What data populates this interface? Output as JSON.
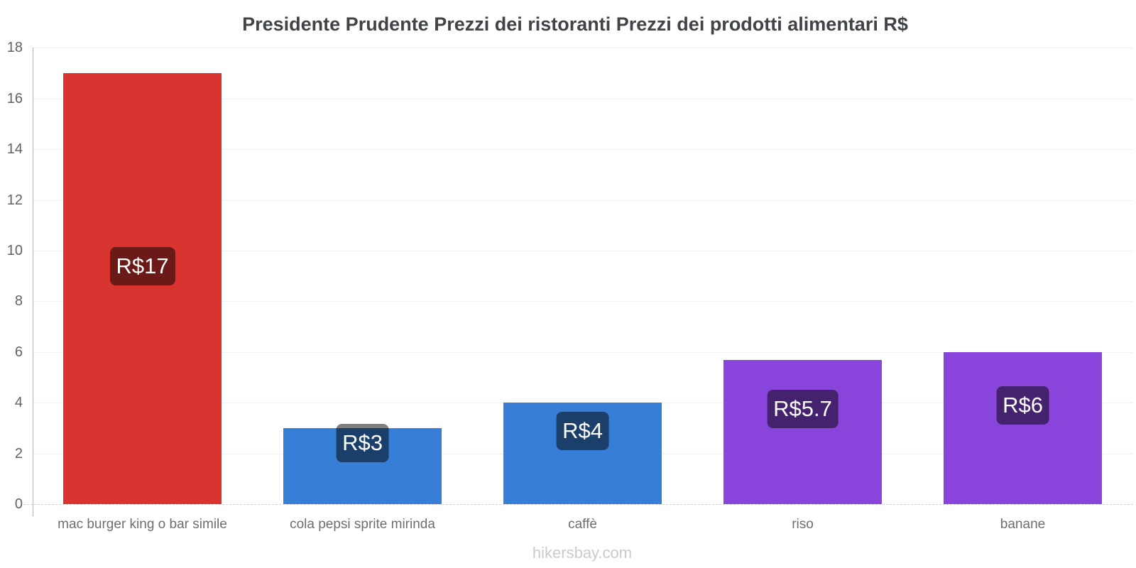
{
  "title": "Presidente Prudente Prezzi dei ristoranti Prezzi dei prodotti alimentari R$",
  "footer": "hikersbay.com",
  "chart_data": {
    "type": "bar",
    "title": "Presidente Prudente Prezzi dei ristoranti Prezzi dei prodotti alimentari R$",
    "categories": [
      "mac burger king o bar simile",
      "cola pepsi sprite mirinda",
      "caffè",
      "riso",
      "banane"
    ],
    "values": [
      17,
      3,
      4,
      5.7,
      6
    ],
    "value_labels": [
      "R$17",
      "R$3",
      "R$4",
      "R$5.7",
      "R$6"
    ],
    "bar_colors": [
      "#d9342f",
      "#377ed7",
      "#377ed7",
      "#8944dc",
      "#8944dc"
    ],
    "value_label_bg": "rgba(0,0,0,0.50)",
    "currency": "R$",
    "xlabel": "",
    "ylabel": "",
    "ylim": [
      0,
      18
    ],
    "yticks": [
      0,
      2,
      4,
      6,
      8,
      10,
      12,
      14,
      16,
      18
    ],
    "grid": true,
    "legend": false
  }
}
